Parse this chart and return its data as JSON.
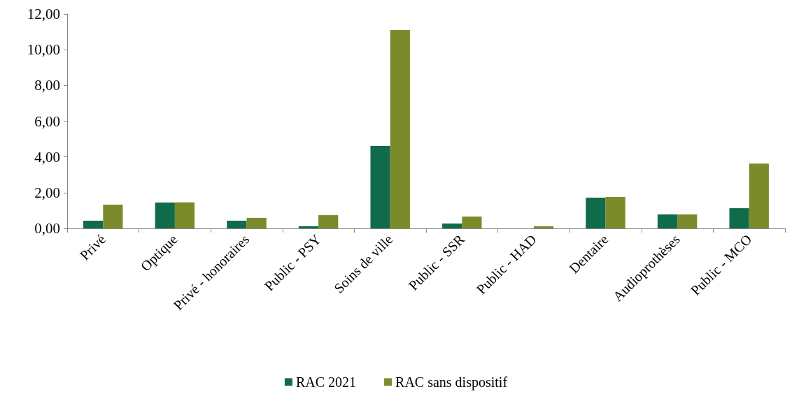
{
  "chart_data": {
    "type": "bar",
    "categories": [
      "Privé",
      "Optique",
      "Privé - honoraires",
      "Public - PSY",
      "Soins de ville",
      "Public - SSR",
      "Public - HAD",
      "Dentaire",
      "Audioprothèses",
      "Public - MCO"
    ],
    "series": [
      {
        "name": "RAC 2021",
        "color": "#0f6b4a",
        "values": [
          0.43,
          1.45,
          0.43,
          0.12,
          4.61,
          0.27,
          0.0,
          1.72,
          0.78,
          1.13
        ]
      },
      {
        "name": "RAC sans dispositif",
        "color": "#7b8b29",
        "values": [
          1.33,
          1.46,
          0.59,
          0.74,
          11.1,
          0.66,
          0.12,
          1.76,
          0.78,
          3.63
        ]
      }
    ],
    "ylim": [
      0,
      12
    ],
    "yticks": [
      {
        "value": 0,
        "label": "0,00"
      },
      {
        "value": 2,
        "label": "2,00"
      },
      {
        "value": 4,
        "label": "4,00"
      },
      {
        "value": 6,
        "label": "6,00"
      },
      {
        "value": 8,
        "label": "8,00"
      },
      {
        "value": 10,
        "label": "10,00"
      },
      {
        "value": 12,
        "label": "12,00"
      }
    ],
    "grid": false,
    "legend": "bottom"
  }
}
